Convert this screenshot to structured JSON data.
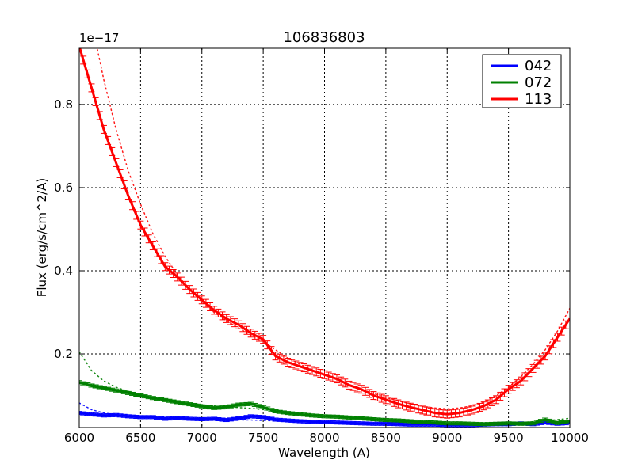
{
  "chart_data": {
    "type": "line",
    "title": "106836803",
    "xlabel": "Wavelength (A)",
    "ylabel": "Flux (erg/s/cm^2/A)",
    "y_offset_label": "1e−17",
    "xlim": [
      6000,
      10000
    ],
    "ylim": [
      0.023,
      0.935
    ],
    "x_ticks": [
      6000,
      6500,
      7000,
      7500,
      8000,
      8500,
      9000,
      9500,
      10000
    ],
    "x_tick_labels": [
      "6000",
      "6500",
      "7000",
      "7500",
      "8000",
      "8500",
      "9000",
      "9500",
      "10000"
    ],
    "y_ticks": [
      0.2,
      0.4,
      0.6,
      0.8
    ],
    "y_tick_labels": [
      "0.2",
      "0.4",
      "0.6",
      "0.8"
    ],
    "grid": true,
    "legend_position": "upper right",
    "x": [
      6000,
      6100,
      6200,
      6300,
      6400,
      6500,
      6600,
      6700,
      6800,
      6900,
      7000,
      7100,
      7200,
      7300,
      7400,
      7500,
      7600,
      7700,
      7800,
      7900,
      8000,
      8100,
      8200,
      8300,
      8400,
      8500,
      8600,
      8700,
      8800,
      8900,
      9000,
      9100,
      9200,
      9300,
      9400,
      9500,
      9600,
      9700,
      9800,
      9900,
      10000
    ],
    "series": [
      {
        "name": "042",
        "color": "#0000ff",
        "values": [
          0.058,
          0.055,
          0.052,
          0.053,
          0.05,
          0.048,
          0.048,
          0.044,
          0.046,
          0.044,
          0.043,
          0.044,
          0.041,
          0.045,
          0.05,
          0.048,
          0.042,
          0.04,
          0.038,
          0.037,
          0.036,
          0.035,
          0.034,
          0.033,
          0.032,
          0.032,
          0.031,
          0.03,
          0.03,
          0.03,
          0.029,
          0.029,
          0.029,
          0.03,
          0.031,
          0.031,
          0.033,
          0.031,
          0.035,
          0.032,
          0.034
        ],
        "fit_values": [
          0.082,
          0.066,
          0.058,
          0.054,
          0.051,
          0.049,
          0.047,
          0.046,
          0.045,
          0.044,
          0.043,
          0.042,
          0.042,
          0.041,
          0.041,
          0.04,
          0.039,
          0.038,
          0.037,
          0.036,
          0.035,
          0.034,
          0.033,
          0.033,
          0.032,
          0.032,
          0.031,
          0.031,
          0.031,
          0.03,
          0.03,
          0.03,
          0.031,
          0.031,
          0.032,
          0.032,
          0.033,
          0.034,
          0.035,
          0.036,
          0.037
        ]
      },
      {
        "name": "072",
        "color": "#008000",
        "values": [
          0.132,
          0.124,
          0.118,
          0.112,
          0.106,
          0.1,
          0.094,
          0.089,
          0.084,
          0.079,
          0.074,
          0.07,
          0.072,
          0.078,
          0.08,
          0.072,
          0.062,
          0.058,
          0.055,
          0.052,
          0.05,
          0.049,
          0.047,
          0.045,
          0.043,
          0.041,
          0.04,
          0.038,
          0.036,
          0.035,
          0.033,
          0.033,
          0.032,
          0.031,
          0.032,
          0.033,
          0.032,
          0.033,
          0.042,
          0.034,
          0.038
        ],
        "fit_values": [
          0.205,
          0.16,
          0.135,
          0.12,
          0.11,
          0.102,
          0.096,
          0.091,
          0.086,
          0.082,
          0.078,
          0.075,
          0.073,
          0.071,
          0.069,
          0.066,
          0.063,
          0.06,
          0.057,
          0.054,
          0.051,
          0.048,
          0.046,
          0.044,
          0.042,
          0.04,
          0.038,
          0.036,
          0.035,
          0.034,
          0.033,
          0.032,
          0.032,
          0.032,
          0.033,
          0.034,
          0.035,
          0.037,
          0.039,
          0.042,
          0.045
        ]
      },
      {
        "name": "113",
        "color": "#ff0000",
        "values": [
          0.94,
          0.84,
          0.74,
          0.66,
          0.58,
          0.51,
          0.46,
          0.41,
          0.385,
          0.355,
          0.33,
          0.305,
          0.285,
          0.27,
          0.25,
          0.235,
          0.195,
          0.18,
          0.17,
          0.16,
          0.15,
          0.14,
          0.125,
          0.115,
          0.1,
          0.09,
          0.08,
          0.072,
          0.065,
          0.058,
          0.055,
          0.058,
          0.065,
          0.075,
          0.09,
          0.115,
          0.135,
          0.165,
          0.195,
          0.24,
          0.285
        ],
        "fit_values": [
          1.2,
          1.0,
          0.86,
          0.74,
          0.64,
          0.56,
          0.49,
          0.435,
          0.39,
          0.355,
          0.325,
          0.3,
          0.28,
          0.262,
          0.245,
          0.23,
          0.21,
          0.19,
          0.175,
          0.162,
          0.15,
          0.138,
          0.126,
          0.115,
          0.105,
          0.095,
          0.087,
          0.08,
          0.074,
          0.07,
          0.068,
          0.07,
          0.075,
          0.085,
          0.1,
          0.12,
          0.145,
          0.175,
          0.21,
          0.255,
          0.31
        ]
      }
    ]
  },
  "legend": {
    "items": [
      {
        "label": "042",
        "color": "#0000ff"
      },
      {
        "label": "072",
        "color": "#008000"
      },
      {
        "label": "113",
        "color": "#ff0000"
      }
    ]
  }
}
